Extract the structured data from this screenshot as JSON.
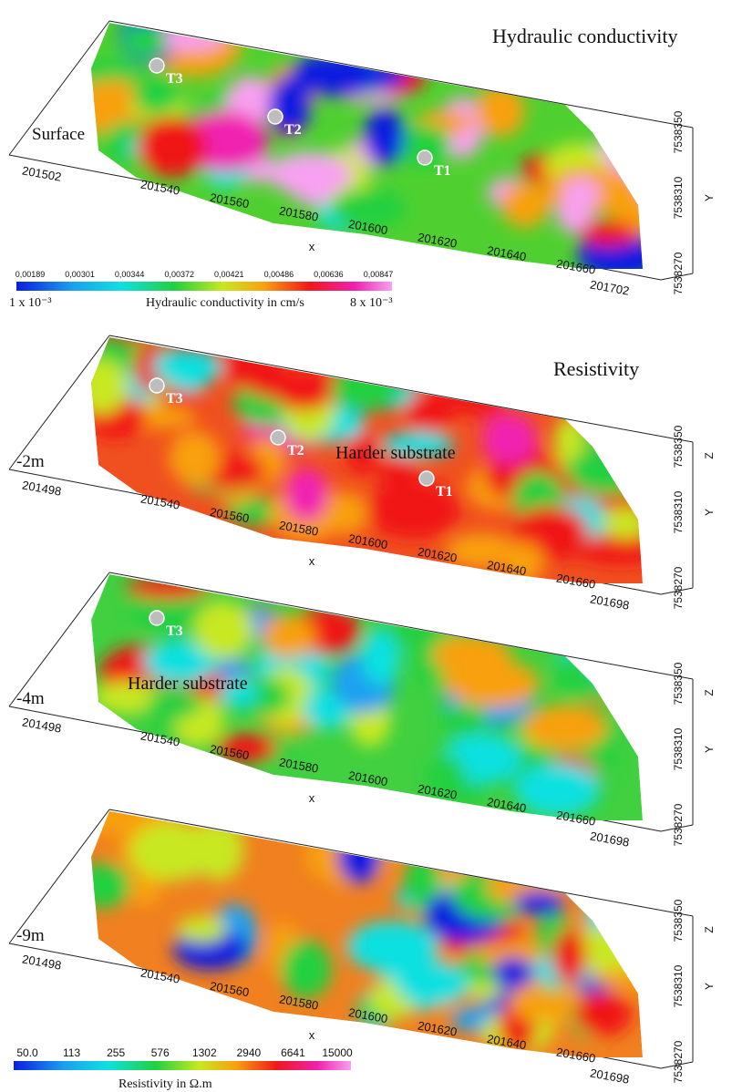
{
  "panels": [
    {
      "title": "Hydraulic conductivity",
      "depth_label": "Surface",
      "x_start": "201502",
      "x_ticks": [
        "201540",
        "201560",
        "201580",
        "201600",
        "201620",
        "201640",
        "201660"
      ],
      "x_end": "201702",
      "x_label": "x",
      "y_ticks": [
        "7538270",
        "7538310",
        "7538350"
      ],
      "y_label": "Y",
      "markers": [
        "T3",
        "T2",
        "T1"
      ]
    },
    {
      "title": "Resistivity",
      "depth_label": "-2m",
      "x_start": "201498",
      "x_ticks": [
        "201540",
        "201560",
        "201580",
        "201600",
        "201620",
        "201640",
        "201660"
      ],
      "x_end": "201698",
      "x_label": "x",
      "y_ticks": [
        "7538270",
        "7538310",
        "7538350"
      ],
      "y_label": "Y",
      "z_label": "Z",
      "markers": [
        "T3",
        "T2",
        "T1"
      ],
      "annotation": "Harder substrate"
    },
    {
      "depth_label": "-4m",
      "x_start": "201498",
      "x_ticks": [
        "201540",
        "201560",
        "201580",
        "201600",
        "201620",
        "201640",
        "201660"
      ],
      "x_end": "201698",
      "x_label": "x",
      "y_ticks": [
        "7538270",
        "7538310",
        "7538350"
      ],
      "y_label": "Y",
      "z_label": "Z",
      "markers": [
        "T3"
      ],
      "annotation": "Harder substrate"
    },
    {
      "depth_label": "-9m",
      "x_start": "201498",
      "x_ticks": [
        "201540",
        "201560",
        "201580",
        "201600",
        "201620",
        "201640",
        "201660"
      ],
      "x_end": "201698",
      "x_label": "x",
      "y_ticks": [
        "7538270",
        "7538310",
        "7538350"
      ],
      "y_label": "Y",
      "z_label": "Z",
      "markers": []
    }
  ],
  "legends": {
    "hydraulic": {
      "ticks": [
        "0,00189",
        "0,00301",
        "0,00344",
        "0,00372",
        "0,00421",
        "0,00486",
        "0,00636",
        "0,00847"
      ],
      "min_label": "1 x 10⁻³",
      "max_label": "8 x 10⁻³",
      "title": "Hydraulic conductivity in cm/s"
    },
    "resistivity": {
      "ticks": [
        "50.0",
        "113",
        "255",
        "576",
        "1302",
        "2940",
        "6641",
        "15000"
      ],
      "title": "Resistivity in Ω.m"
    }
  }
}
